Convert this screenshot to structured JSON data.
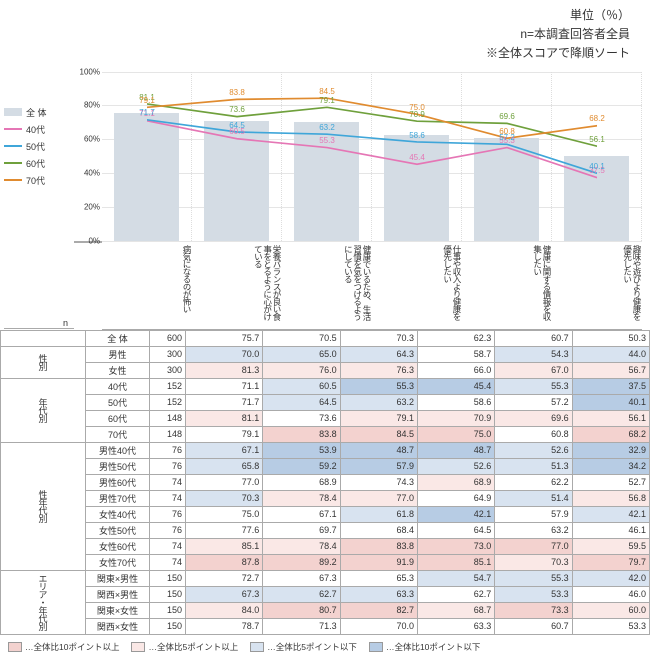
{
  "header": {
    "unit": "単位（％）",
    "n_note": "n=本調査回答者全員",
    "sort_note": "※全体スコアで降順ソート"
  },
  "chart": {
    "ylim": [
      0,
      100
    ],
    "ytick_step": 20,
    "bar_color": "#d4dce4",
    "grid_color": "#e5e5e5",
    "categories": [
      "病気になるのが怖い",
      "栄養バランスが良い食事をとるように心がけている",
      "健康でいるため、生活習慣を気をつけるようにしている",
      "仕事や収入より健康を優先したい",
      "健康に関する情報を収集したい",
      "趣味や遊びより健康を優先したい"
    ],
    "series": [
      {
        "name": "全 体",
        "type": "bar",
        "color": "#d4dce4",
        "values": [
          75.7,
          70.5,
          70.3,
          62.3,
          60.7,
          50.3
        ]
      },
      {
        "name": "40代",
        "type": "line",
        "color": "#e576b5",
        "values": [
          71.1,
          60.5,
          55.3,
          45.4,
          55.3,
          37.5
        ]
      },
      {
        "name": "50代",
        "type": "line",
        "color": "#3fa6d9",
        "values": [
          71.7,
          64.5,
          63.2,
          58.6,
          57.2,
          40.1
        ]
      },
      {
        "name": "60代",
        "type": "line",
        "color": "#6fa03c",
        "values": [
          81.1,
          73.6,
          79.1,
          70.9,
          69.6,
          56.1
        ]
      },
      {
        "name": "70代",
        "type": "line",
        "color": "#e08b2f",
        "values": [
          79.1,
          83.8,
          84.5,
          75.0,
          60.8,
          68.2
        ]
      }
    ],
    "value_label_fontsize": 8
  },
  "highlight_colors": {
    "p10": "#f3d2cf",
    "p5": "#fae8e6",
    "m5": "#d8e3f0",
    "m10": "#b7cce4"
  },
  "table": {
    "n_header": "n",
    "groups": [
      {
        "label": "",
        "rows": [
          {
            "label": "全 体",
            "n": 600,
            "v": [
              75.7,
              70.5,
              70.3,
              62.3,
              60.7,
              50.3
            ],
            "h": [
              "",
              "",
              "",
              "",
              "",
              ""
            ]
          }
        ]
      },
      {
        "label": "性別",
        "rows": [
          {
            "label": "男性",
            "n": 300,
            "v": [
              70.0,
              65.0,
              64.3,
              58.7,
              54.3,
              44.0
            ],
            "h": [
              "m5",
              "m5",
              "m5",
              "",
              "m5",
              "m5"
            ]
          },
          {
            "label": "女性",
            "n": 300,
            "v": [
              81.3,
              76.0,
              76.3,
              66.0,
              67.0,
              56.7
            ],
            "h": [
              "p5",
              "p5",
              "p5",
              "",
              "p5",
              "p5"
            ]
          }
        ]
      },
      {
        "label": "年代別",
        "rows": [
          {
            "label": "40代",
            "n": 152,
            "v": [
              71.1,
              60.5,
              55.3,
              45.4,
              55.3,
              37.5
            ],
            "h": [
              "",
              "m5",
              "m10",
              "m10",
              "m5",
              "m10"
            ]
          },
          {
            "label": "50代",
            "n": 152,
            "v": [
              71.7,
              64.5,
              63.2,
              58.6,
              57.2,
              40.1
            ],
            "h": [
              "",
              "m5",
              "m5",
              "",
              "",
              "m10"
            ]
          },
          {
            "label": "60代",
            "n": 148,
            "v": [
              81.1,
              73.6,
              79.1,
              70.9,
              69.6,
              56.1
            ],
            "h": [
              "p5",
              "",
              "p5",
              "p5",
              "p5",
              "p5"
            ]
          },
          {
            "label": "70代",
            "n": 148,
            "v": [
              79.1,
              83.8,
              84.5,
              75.0,
              60.8,
              68.2
            ],
            "h": [
              "",
              "p10",
              "p10",
              "p10",
              "",
              "p10"
            ]
          }
        ]
      },
      {
        "label": "性年代別",
        "rows": [
          {
            "label": "男性40代",
            "n": 76,
            "v": [
              67.1,
              53.9,
              48.7,
              48.7,
              52.6,
              32.9
            ],
            "h": [
              "m5",
              "m10",
              "m10",
              "m10",
              "m5",
              "m10"
            ]
          },
          {
            "label": "男性50代",
            "n": 76,
            "v": [
              65.8,
              59.2,
              57.9,
              52.6,
              51.3,
              34.2
            ],
            "h": [
              "m5",
              "m10",
              "m10",
              "m5",
              "m5",
              "m10"
            ]
          },
          {
            "label": "男性60代",
            "n": 74,
            "v": [
              77.0,
              68.9,
              74.3,
              68.9,
              62.2,
              52.7
            ],
            "h": [
              "",
              "",
              "",
              "p5",
              "",
              ""
            ]
          },
          {
            "label": "男性70代",
            "n": 74,
            "v": [
              70.3,
              78.4,
              77.0,
              64.9,
              51.4,
              56.8
            ],
            "h": [
              "m5",
              "p5",
              "p5",
              "",
              "m5",
              "p5"
            ]
          },
          {
            "label": "女性40代",
            "n": 76,
            "v": [
              75.0,
              67.1,
              61.8,
              42.1,
              57.9,
              42.1
            ],
            "h": [
              "",
              "",
              "m5",
              "m10",
              "",
              "m5"
            ]
          },
          {
            "label": "女性50代",
            "n": 76,
            "v": [
              77.6,
              69.7,
              68.4,
              64.5,
              63.2,
              46.1
            ],
            "h": [
              "",
              "",
              "",
              "",
              "",
              ""
            ]
          },
          {
            "label": "女性60代",
            "n": 74,
            "v": [
              85.1,
              78.4,
              83.8,
              73.0,
              77.0,
              59.5
            ],
            "h": [
              "p5",
              "p5",
              "p10",
              "p10",
              "p10",
              "p5"
            ]
          },
          {
            "label": "女性70代",
            "n": 74,
            "v": [
              87.8,
              89.2,
              91.9,
              85.1,
              70.3,
              79.7
            ],
            "h": [
              "p10",
              "p10",
              "p10",
              "p10",
              "p5",
              "p10"
            ]
          }
        ]
      },
      {
        "label": "エリア・年代別",
        "rows": [
          {
            "label": "関東×男性",
            "n": 150,
            "v": [
              72.7,
              67.3,
              65.3,
              54.7,
              55.3,
              42.0
            ],
            "h": [
              "",
              "",
              "",
              "m5",
              "m5",
              "m5"
            ]
          },
          {
            "label": "関西×男性",
            "n": 150,
            "v": [
              67.3,
              62.7,
              63.3,
              62.7,
              53.3,
              46.0
            ],
            "h": [
              "m5",
              "m5",
              "m5",
              "",
              "m5",
              ""
            ]
          },
          {
            "label": "関東×女性",
            "n": 150,
            "v": [
              84.0,
              80.7,
              82.7,
              68.7,
              73.3,
              60.0
            ],
            "h": [
              "p5",
              "p10",
              "p10",
              "p5",
              "p10",
              "p5"
            ]
          },
          {
            "label": "関西×女性",
            "n": 150,
            "v": [
              78.7,
              71.3,
              70.0,
              63.3,
              60.7,
              53.3
            ],
            "h": [
              "",
              "",
              "",
              "",
              "",
              ""
            ]
          }
        ]
      }
    ]
  },
  "footer": [
    {
      "label": "…全体比10ポイント以上",
      "color": "#f3d2cf"
    },
    {
      "label": "…全体比5ポイント以上",
      "color": "#fae8e6"
    },
    {
      "label": "…全体比5ポイント以下",
      "color": "#d8e3f0"
    },
    {
      "label": "…全体比10ポイント以下",
      "color": "#b7cce4"
    }
  ]
}
